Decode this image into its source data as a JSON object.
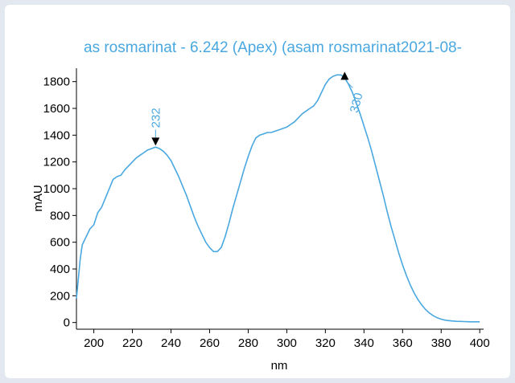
{
  "chart_data": {
    "type": "line",
    "title": "as rosmarinat - 6.242 (Apex)  (asam rosmarinat2021-08-",
    "xlabel": "nm",
    "ylabel": "mAU",
    "xlim": [
      191,
      402
    ],
    "ylim": [
      -50,
      1900
    ],
    "x_ticks": [
      200,
      220,
      240,
      260,
      280,
      300,
      320,
      340,
      360,
      380,
      400
    ],
    "y_ticks": [
      0,
      200,
      400,
      600,
      800,
      1000,
      1200,
      1400,
      1600,
      1800
    ],
    "x_tick_labels": [
      "200",
      "220",
      "240",
      "260",
      "280",
      "300",
      "320",
      "340",
      "360",
      "380",
      "400"
    ],
    "y_tick_labels": [
      "0",
      "200",
      "400",
      "600",
      "800",
      "1000",
      "1200",
      "1400",
      "1600",
      "1800"
    ],
    "grid": false,
    "line_color": "#4aa8e0",
    "series": [
      {
        "x": [
          191,
          192,
          193,
          194,
          196,
          198,
          200,
          202,
          204,
          206,
          208,
          210,
          212,
          214,
          216,
          218,
          220,
          222,
          224,
          226,
          228,
          230,
          232,
          234,
          236,
          238,
          240,
          242,
          244,
          246,
          248,
          250,
          252,
          254,
          256,
          258,
          260,
          262,
          264,
          266,
          268,
          270,
          272,
          274,
          276,
          278,
          280,
          282,
          284,
          286,
          288,
          290,
          292,
          294,
          296,
          298,
          300,
          302,
          304,
          306,
          308,
          310,
          312,
          314,
          316,
          318,
          320,
          322,
          324,
          326,
          328,
          330,
          332,
          334,
          336,
          338,
          340,
          342,
          344,
          346,
          348,
          350,
          352,
          354,
          356,
          358,
          360,
          362,
          364,
          366,
          368,
          370,
          372,
          374,
          376,
          378,
          380,
          382,
          384,
          386,
          388,
          390,
          392,
          394,
          396,
          398,
          400
        ],
        "y": [
          180,
          330,
          480,
          580,
          640,
          700,
          730,
          820,
          860,
          930,
          1000,
          1070,
          1090,
          1100,
          1140,
          1170,
          1200,
          1230,
          1250,
          1270,
          1290,
          1300,
          1310,
          1300,
          1280,
          1250,
          1210,
          1150,
          1090,
          1020,
          950,
          870,
          790,
          720,
          660,
          600,
          560,
          530,
          530,
          560,
          640,
          740,
          850,
          950,
          1050,
          1150,
          1240,
          1320,
          1380,
          1400,
          1410,
          1420,
          1420,
          1430,
          1440,
          1450,
          1460,
          1480,
          1500,
          1530,
          1560,
          1580,
          1600,
          1620,
          1660,
          1720,
          1780,
          1820,
          1840,
          1850,
          1850,
          1830,
          1780,
          1720,
          1640,
          1560,
          1470,
          1380,
          1280,
          1170,
          1060,
          950,
          830,
          720,
          620,
          520,
          430,
          350,
          280,
          220,
          170,
          130,
          95,
          70,
          50,
          35,
          25,
          18,
          14,
          11,
          9,
          8,
          7,
          6,
          5,
          5,
          5
        ]
      }
    ],
    "annotations": [
      {
        "label": "232",
        "x": 232,
        "y": 1310,
        "marker": "down-triangle"
      },
      {
        "label": "330",
        "x": 330,
        "y": 1850,
        "marker": "up-triangle"
      }
    ]
  }
}
